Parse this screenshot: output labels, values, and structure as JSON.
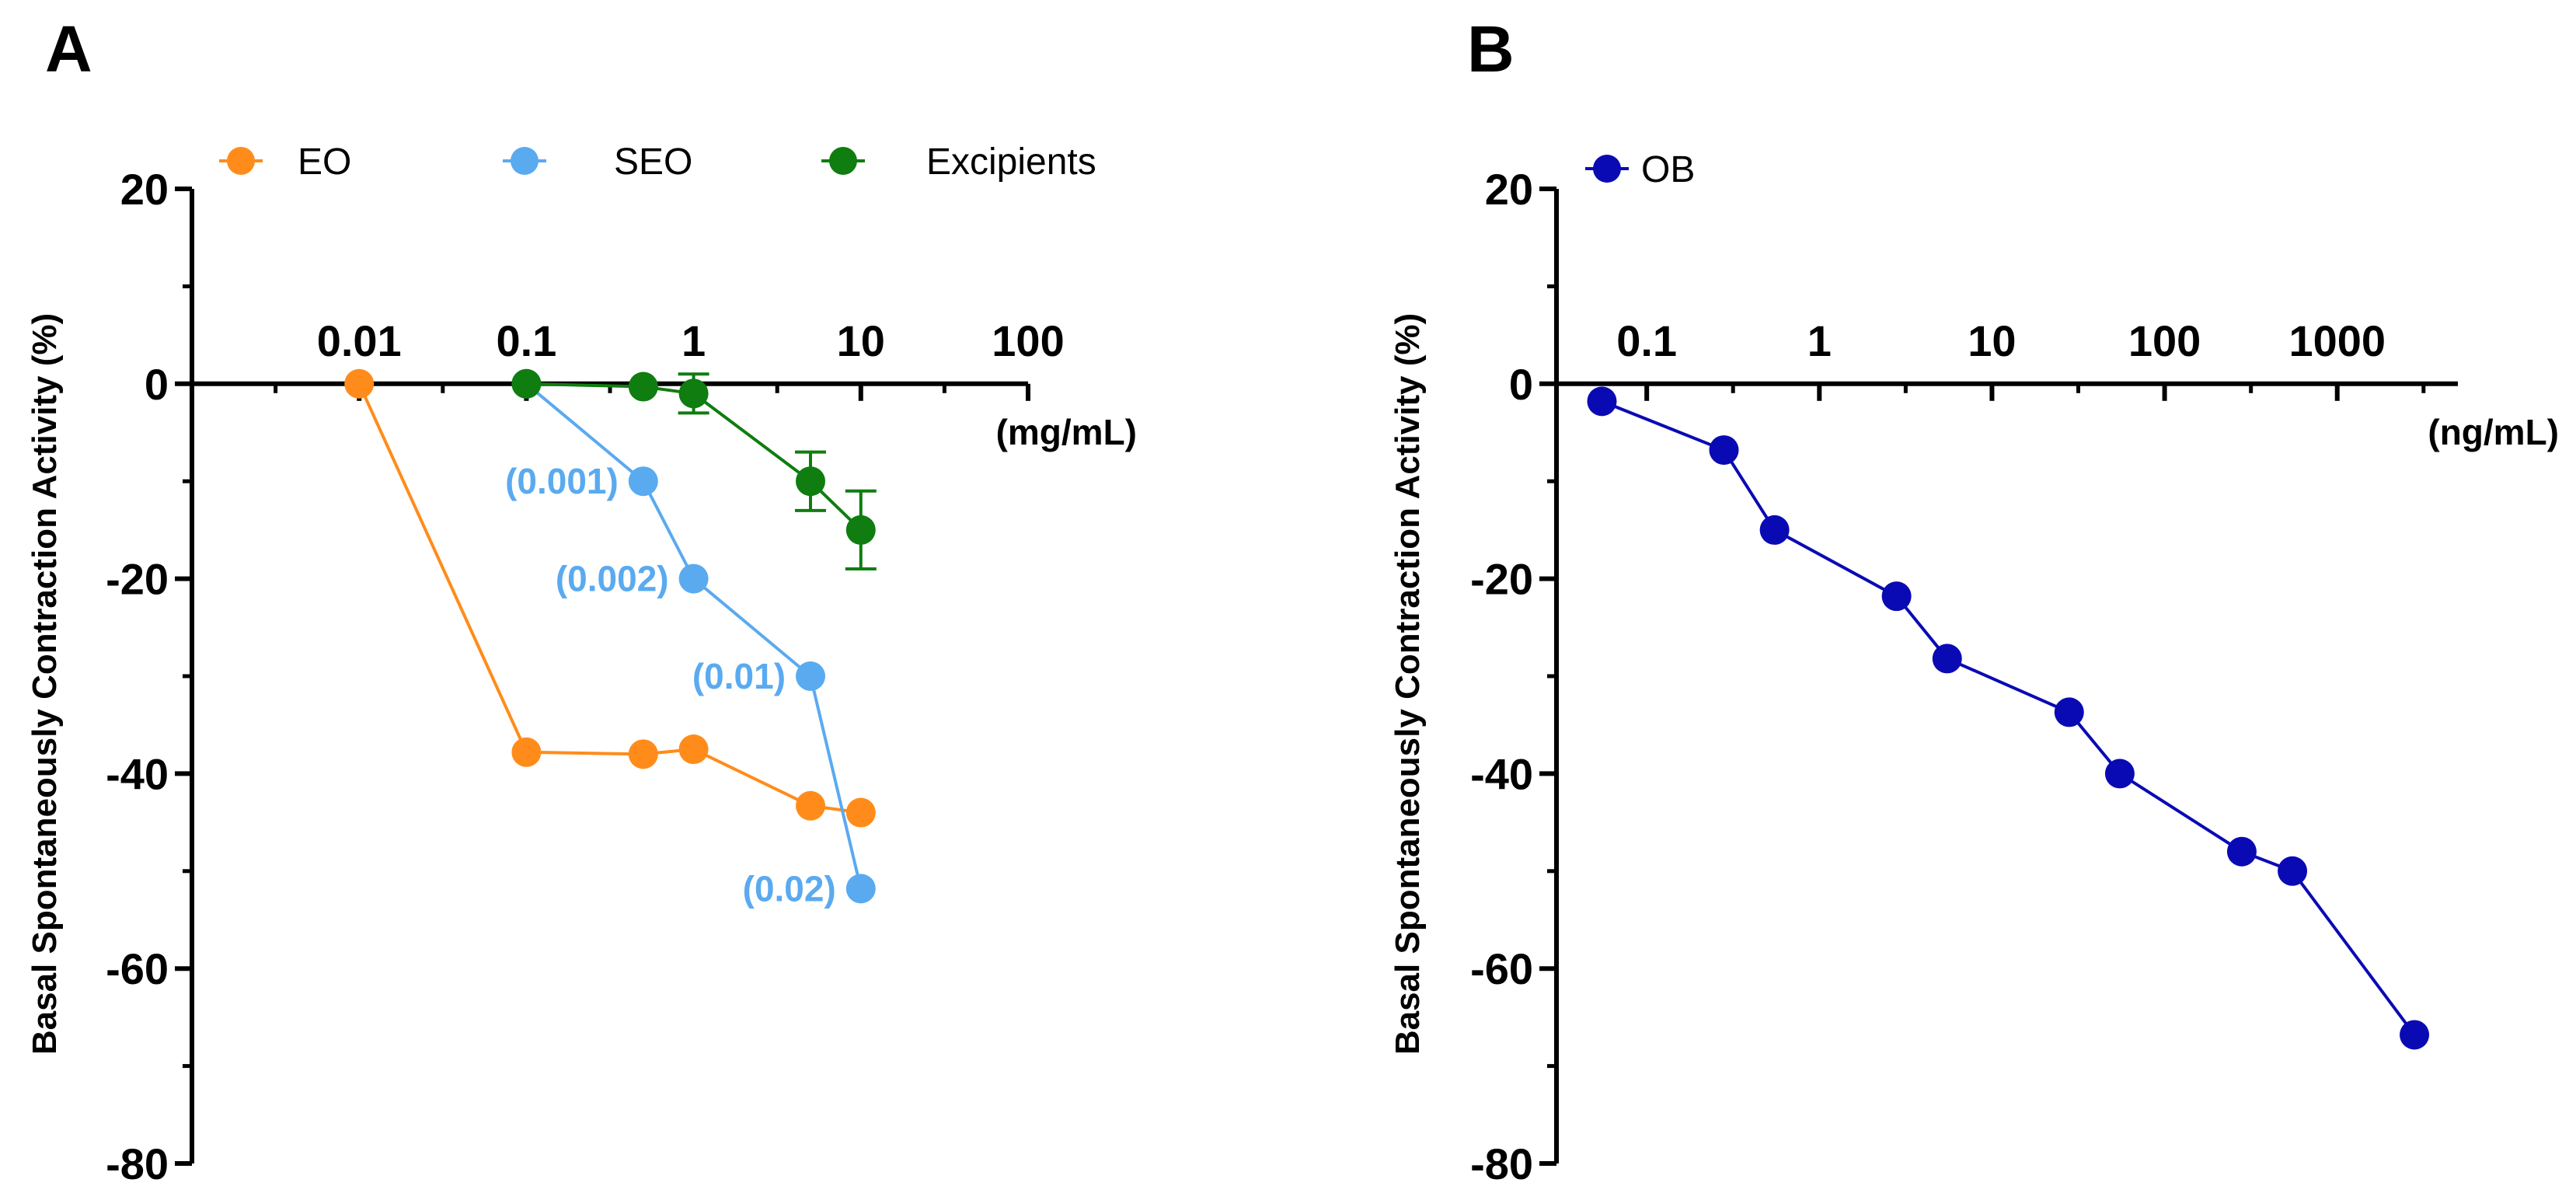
{
  "chart_data": [
    {
      "panel": "A",
      "type": "line",
      "ylabel": "Basal Spontaneously Contraction Activity (%)",
      "x_unit": "(mg/mL)",
      "x_scale": "log",
      "xlim": [
        0.001,
        100
      ],
      "ylim": [
        -80,
        20
      ],
      "x_ticks": [
        0.01,
        0.1,
        1,
        10,
        100
      ],
      "x_tick_labels": [
        "0.01",
        "0.1",
        "1",
        "10",
        "100"
      ],
      "y_ticks": [
        20,
        0,
        -20,
        -40,
        -60,
        -80
      ],
      "y_tick_labels": [
        "20",
        "0",
        "-20",
        "-40",
        "-60",
        "-80"
      ],
      "legend_position": "top",
      "series": [
        {
          "name": "EO",
          "color": "#FF8C1A",
          "x": [
            0.01,
            0.1,
            0.5,
            1,
            5,
            10
          ],
          "y": [
            0,
            -37.8,
            -38,
            -37.5,
            -43.3,
            -44
          ]
        },
        {
          "name": "SEO",
          "color": "#5AAAF0",
          "x": [
            0.1,
            0.5,
            1,
            5,
            10
          ],
          "y": [
            0,
            -10,
            -20,
            -30,
            -51.8
          ],
          "annotations": [
            {
              "x": 0.5,
              "y": -10,
              "text": "(0.001)"
            },
            {
              "x": 1,
              "y": -20,
              "text": "(0.002)"
            },
            {
              "x": 5,
              "y": -30,
              "text": "(0.01)"
            },
            {
              "x": 10,
              "y": -51.8,
              "text": "(0.02)"
            }
          ]
        },
        {
          "name": "Excipients",
          "color": "#0F7D0F",
          "x": [
            0.1,
            0.5,
            1,
            5,
            10
          ],
          "y": [
            0,
            -0.3,
            -1,
            -10,
            -15
          ],
          "error": [
            0,
            0,
            2,
            3,
            4
          ]
        }
      ]
    },
    {
      "panel": "B",
      "type": "line",
      "ylabel": "Basal Spontaneously Contraction Activity (%)",
      "x_unit": "(ng/mL)",
      "x_scale": "log",
      "xlim": [
        0.03,
        5000
      ],
      "ylim": [
        -80,
        20
      ],
      "x_ticks": [
        0.1,
        1,
        10,
        100,
        1000
      ],
      "x_tick_labels": [
        "0.1",
        "1",
        "10",
        "100",
        "1000"
      ],
      "y_ticks": [
        20,
        0,
        -20,
        -40,
        -60,
        -80
      ],
      "y_tick_labels": [
        "20",
        "0",
        "-20",
        "-40",
        "-60",
        "-80"
      ],
      "legend_position": "top-left",
      "series": [
        {
          "name": "OB",
          "color": "#0A0AB4",
          "x": [
            0.055,
            0.28,
            0.55,
            2.8,
            5.5,
            28,
            55,
            280,
            550,
            2800
          ],
          "y": [
            -1.8,
            -6.8,
            -15,
            -21.8,
            -28.2,
            -33.7,
            -40,
            -48,
            -50,
            -66.8
          ]
        }
      ]
    }
  ]
}
